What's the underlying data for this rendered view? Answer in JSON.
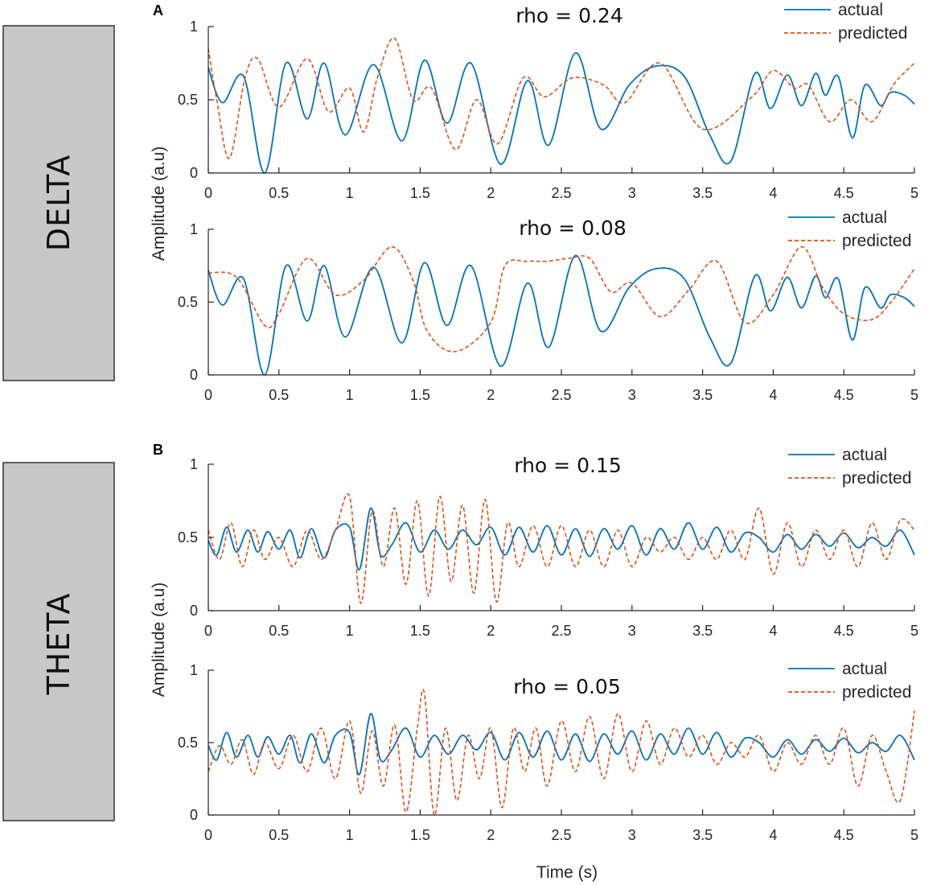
{
  "bands": [
    {
      "label": "DELTA"
    },
    {
      "label": "THETA"
    }
  ],
  "panels": [
    {
      "letter": "A"
    },
    {
      "letter": "B"
    }
  ],
  "legend": {
    "actual": "actual",
    "predicted": "predicted"
  },
  "colors": {
    "actual": "#0072bd",
    "predicted": "#d95319"
  },
  "axes": {
    "ylabel": "Amplitude (a.u)",
    "xlabel": "Time (s)",
    "xticks": [
      "0",
      "0.5",
      "1",
      "1.5",
      "2",
      "2.5",
      "3",
      "3.5",
      "4",
      "4.5",
      "5"
    ],
    "yticks": [
      "0",
      "0.5",
      "1"
    ]
  },
  "chart_data": [
    {
      "type": "line",
      "title": "rho = 0.24",
      "band": "DELTA",
      "panel": "A",
      "xlim": [
        0,
        5
      ],
      "ylim": [
        0,
        1
      ],
      "series": [
        {
          "name": "actual",
          "style": "solid",
          "x": [
            0,
            0.1,
            0.25,
            0.4,
            0.55,
            0.7,
            0.82,
            0.97,
            1.17,
            1.37,
            1.53,
            1.69,
            1.86,
            2.07,
            2.26,
            2.41,
            2.6,
            2.78,
            2.98,
            3.17,
            3.37,
            3.55,
            3.7,
            3.87,
            3.98,
            4.1,
            4.2,
            4.3,
            4.37,
            4.46,
            4.56,
            4.65,
            4.76,
            4.83,
            4.93,
            5
          ],
          "y": [
            0.72,
            0.48,
            0.66,
            0.0,
            0.75,
            0.37,
            0.75,
            0.26,
            0.74,
            0.22,
            0.77,
            0.34,
            0.75,
            0.06,
            0.63,
            0.19,
            0.82,
            0.3,
            0.6,
            0.73,
            0.66,
            0.26,
            0.08,
            0.68,
            0.44,
            0.67,
            0.46,
            0.68,
            0.53,
            0.66,
            0.24,
            0.6,
            0.46,
            0.55,
            0.53,
            0.47
          ]
        },
        {
          "name": "predicted",
          "style": "dashed",
          "x": [
            0,
            0.06,
            0.15,
            0.26,
            0.35,
            0.5,
            0.7,
            0.85,
            1.0,
            1.1,
            1.2,
            1.32,
            1.45,
            1.58,
            1.75,
            1.9,
            2.05,
            2.23,
            2.38,
            2.58,
            2.8,
            2.95,
            3.2,
            3.5,
            3.85,
            4.0,
            4.15,
            4.25,
            4.4,
            4.55,
            4.7,
            4.85,
            5
          ],
          "y": [
            0.85,
            0.5,
            0.1,
            0.65,
            0.78,
            0.45,
            0.78,
            0.42,
            0.58,
            0.28,
            0.66,
            0.92,
            0.5,
            0.58,
            0.16,
            0.5,
            0.2,
            0.65,
            0.52,
            0.65,
            0.6,
            0.48,
            0.75,
            0.3,
            0.52,
            0.7,
            0.58,
            0.6,
            0.35,
            0.5,
            0.35,
            0.6,
            0.75
          ]
        }
      ]
    },
    {
      "type": "line",
      "title": "rho = 0.08",
      "band": "DELTA",
      "panel": "A",
      "xlim": [
        0,
        5
      ],
      "ylim": [
        0,
        1
      ],
      "series": [
        {
          "name": "actual",
          "style": "solid",
          "x": [
            0,
            0.1,
            0.25,
            0.4,
            0.55,
            0.7,
            0.82,
            0.97,
            1.17,
            1.37,
            1.53,
            1.69,
            1.86,
            2.07,
            2.26,
            2.41,
            2.6,
            2.78,
            2.98,
            3.17,
            3.37,
            3.55,
            3.7,
            3.87,
            3.98,
            4.1,
            4.2,
            4.3,
            4.37,
            4.46,
            4.56,
            4.65,
            4.76,
            4.83,
            4.93,
            5
          ],
          "y": [
            0.72,
            0.48,
            0.66,
            0.0,
            0.75,
            0.37,
            0.75,
            0.26,
            0.74,
            0.22,
            0.77,
            0.34,
            0.75,
            0.06,
            0.63,
            0.19,
            0.82,
            0.3,
            0.6,
            0.73,
            0.66,
            0.26,
            0.08,
            0.68,
            0.44,
            0.67,
            0.46,
            0.68,
            0.53,
            0.66,
            0.24,
            0.6,
            0.46,
            0.55,
            0.53,
            0.47
          ]
        },
        {
          "name": "predicted",
          "style": "dashed",
          "x": [
            0,
            0.2,
            0.4,
            0.5,
            0.7,
            0.9,
            1.1,
            1.3,
            1.45,
            1.55,
            1.75,
            2.0,
            2.1,
            2.25,
            2.4,
            2.55,
            2.7,
            2.85,
            3.0,
            3.2,
            3.4,
            3.6,
            3.8,
            4.0,
            4.2,
            4.35,
            4.5,
            4.7,
            4.85,
            5
          ],
          "y": [
            0.7,
            0.67,
            0.34,
            0.42,
            0.8,
            0.55,
            0.65,
            0.88,
            0.65,
            0.3,
            0.16,
            0.36,
            0.75,
            0.78,
            0.78,
            0.8,
            0.8,
            0.57,
            0.63,
            0.4,
            0.58,
            0.78,
            0.36,
            0.55,
            0.88,
            0.6,
            0.42,
            0.38,
            0.52,
            0.73
          ]
        }
      ]
    },
    {
      "type": "line",
      "title": "rho = 0.15",
      "band": "THETA",
      "panel": "B",
      "xlim": [
        0,
        5
      ],
      "ylim": [
        0,
        1
      ],
      "series": [
        {
          "name": "actual",
          "style": "solid",
          "x": [
            0,
            0.06,
            0.13,
            0.2,
            0.28,
            0.35,
            0.42,
            0.5,
            0.58,
            0.65,
            0.73,
            0.82,
            0.9,
            1.0,
            1.07,
            1.15,
            1.22,
            1.3,
            1.4,
            1.5,
            1.6,
            1.7,
            1.8,
            1.9,
            2.0,
            2.1,
            2.2,
            2.3,
            2.4,
            2.5,
            2.6,
            2.7,
            2.8,
            2.9,
            3.0,
            3.1,
            3.2,
            3.3,
            3.4,
            3.5,
            3.6,
            3.7,
            3.8,
            3.9,
            4.0,
            4.1,
            4.2,
            4.3,
            4.4,
            4.5,
            4.6,
            4.7,
            4.8,
            4.9,
            5
          ],
          "y": [
            0.48,
            0.38,
            0.57,
            0.4,
            0.55,
            0.4,
            0.54,
            0.42,
            0.55,
            0.36,
            0.56,
            0.36,
            0.55,
            0.57,
            0.28,
            0.7,
            0.38,
            0.45,
            0.6,
            0.4,
            0.55,
            0.42,
            0.55,
            0.45,
            0.57,
            0.38,
            0.57,
            0.4,
            0.58,
            0.38,
            0.56,
            0.37,
            0.56,
            0.42,
            0.58,
            0.38,
            0.56,
            0.42,
            0.6,
            0.42,
            0.57,
            0.4,
            0.53,
            0.5,
            0.4,
            0.52,
            0.42,
            0.52,
            0.44,
            0.53,
            0.43,
            0.5,
            0.44,
            0.55,
            0.38
          ]
        },
        {
          "name": "predicted",
          "style": "dashed",
          "x": [
            0,
            0.08,
            0.16,
            0.24,
            0.32,
            0.4,
            0.5,
            0.6,
            0.7,
            0.8,
            0.9,
            1.0,
            1.08,
            1.16,
            1.24,
            1.32,
            1.4,
            1.48,
            1.56,
            1.64,
            1.72,
            1.8,
            1.88,
            1.96,
            2.04,
            2.12,
            2.2,
            2.3,
            2.4,
            2.5,
            2.6,
            2.7,
            2.8,
            2.9,
            3.0,
            3.1,
            3.2,
            3.3,
            3.4,
            3.5,
            3.6,
            3.7,
            3.8,
            3.9,
            4.0,
            4.1,
            4.2,
            4.3,
            4.4,
            4.5,
            4.6,
            4.7,
            4.8,
            4.9,
            5
          ],
          "y": [
            0.55,
            0.35,
            0.6,
            0.3,
            0.55,
            0.35,
            0.5,
            0.3,
            0.55,
            0.35,
            0.55,
            0.78,
            0.05,
            0.68,
            0.3,
            0.7,
            0.18,
            0.75,
            0.1,
            0.78,
            0.2,
            0.72,
            0.12,
            0.76,
            0.06,
            0.6,
            0.3,
            0.58,
            0.3,
            0.58,
            0.3,
            0.55,
            0.3,
            0.55,
            0.3,
            0.5,
            0.4,
            0.5,
            0.35,
            0.5,
            0.35,
            0.55,
            0.35,
            0.7,
            0.25,
            0.6,
            0.3,
            0.55,
            0.35,
            0.55,
            0.3,
            0.6,
            0.35,
            0.62,
            0.55
          ]
        }
      ]
    },
    {
      "type": "line",
      "title": "rho = 0.05",
      "band": "THETA",
      "panel": "B",
      "xlim": [
        0,
        5
      ],
      "ylim": [
        0,
        1
      ],
      "series": [
        {
          "name": "actual",
          "style": "solid",
          "x": [
            0,
            0.06,
            0.13,
            0.2,
            0.28,
            0.35,
            0.42,
            0.5,
            0.58,
            0.65,
            0.73,
            0.82,
            0.9,
            1.0,
            1.07,
            1.15,
            1.22,
            1.3,
            1.4,
            1.5,
            1.6,
            1.7,
            1.8,
            1.9,
            2.0,
            2.1,
            2.2,
            2.3,
            2.4,
            2.5,
            2.6,
            2.7,
            2.8,
            2.9,
            3.0,
            3.1,
            3.2,
            3.3,
            3.4,
            3.5,
            3.6,
            3.7,
            3.8,
            3.9,
            4.0,
            4.1,
            4.2,
            4.3,
            4.4,
            4.5,
            4.6,
            4.7,
            4.8,
            4.9,
            5
          ],
          "y": [
            0.48,
            0.38,
            0.57,
            0.4,
            0.55,
            0.4,
            0.54,
            0.42,
            0.55,
            0.36,
            0.56,
            0.36,
            0.55,
            0.57,
            0.28,
            0.7,
            0.38,
            0.45,
            0.6,
            0.4,
            0.55,
            0.42,
            0.55,
            0.45,
            0.57,
            0.38,
            0.57,
            0.4,
            0.58,
            0.38,
            0.56,
            0.37,
            0.56,
            0.42,
            0.58,
            0.38,
            0.56,
            0.42,
            0.6,
            0.42,
            0.57,
            0.4,
            0.53,
            0.5,
            0.4,
            0.52,
            0.42,
            0.52,
            0.44,
            0.53,
            0.43,
            0.5,
            0.44,
            0.55,
            0.38
          ]
        },
        {
          "name": "predicted",
          "style": "dashed",
          "x": [
            0,
            0.08,
            0.16,
            0.24,
            0.32,
            0.4,
            0.5,
            0.6,
            0.7,
            0.8,
            0.9,
            1.0,
            1.08,
            1.16,
            1.24,
            1.32,
            1.4,
            1.48,
            1.53,
            1.6,
            1.68,
            1.76,
            1.84,
            1.92,
            2.0,
            2.08,
            2.16,
            2.24,
            2.32,
            2.4,
            2.5,
            2.6,
            2.7,
            2.8,
            2.9,
            3.0,
            3.1,
            3.2,
            3.3,
            3.4,
            3.5,
            3.6,
            3.7,
            3.8,
            3.9,
            4.0,
            4.1,
            4.2,
            4.3,
            4.4,
            4.5,
            4.6,
            4.7,
            4.8,
            4.9,
            5
          ],
          "y": [
            0.3,
            0.48,
            0.35,
            0.52,
            0.28,
            0.5,
            0.32,
            0.55,
            0.3,
            0.6,
            0.25,
            0.65,
            0.15,
            0.58,
            0.2,
            0.62,
            0.02,
            0.6,
            0.84,
            0.0,
            0.6,
            0.1,
            0.55,
            0.25,
            0.6,
            0.05,
            0.6,
            0.3,
            0.6,
            0.2,
            0.65,
            0.3,
            0.68,
            0.25,
            0.7,
            0.3,
            0.65,
            0.35,
            0.6,
            0.4,
            0.55,
            0.35,
            0.5,
            0.4,
            0.55,
            0.3,
            0.5,
            0.35,
            0.55,
            0.35,
            0.6,
            0.2,
            0.55,
            0.3,
            0.1,
            0.72
          ]
        }
      ]
    }
  ]
}
